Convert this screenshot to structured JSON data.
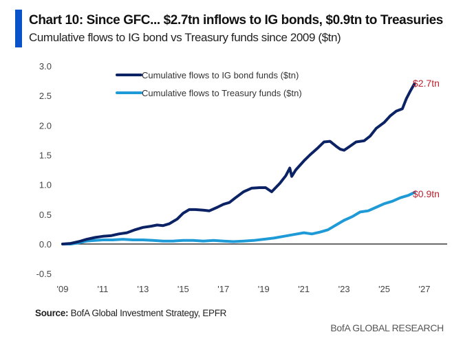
{
  "header": {
    "title": "Chart 10: Since GFC... $2.7tn inflows to IG bonds, $0.9tn to Treasuries",
    "subtitle": "Cumulative flows to IG bond vs Treasury funds since 2009 ($tn)",
    "accent_color": "#0a52c9"
  },
  "footer": {
    "source_label": "Source:",
    "source_text": " BofA Global Investment Strategy, EPFR",
    "brand": "BofA GLOBAL RESEARCH"
  },
  "chart_data": {
    "type": "line",
    "title": "Chart 10: Since GFC... $2.7tn inflows to IG bonds, $0.9tn to Treasuries",
    "subtitle": "Cumulative flows to IG bond vs Treasury funds since 2009 ($tn)",
    "xlabel": "",
    "ylabel": "",
    "xlim": [
      2009,
      2028.1
    ],
    "ylim": [
      -0.5,
      3.0
    ],
    "grid": false,
    "legend_position": "top-left",
    "x_ticks": [
      2009,
      2011,
      2013,
      2015,
      2017,
      2019,
      2021,
      2023,
      2025,
      2027
    ],
    "x_tick_labels": [
      "'09",
      "'11",
      "'13",
      "'15",
      "'17",
      "'19",
      "'21",
      "'23",
      "'25",
      "'27"
    ],
    "y_ticks": [
      -0.5,
      0.0,
      0.5,
      1.0,
      1.5,
      2.0,
      2.5,
      3.0
    ],
    "y_tick_labels": [
      "-0.5",
      "0.0",
      "0.5",
      "1.0",
      "1.5",
      "2.0",
      "2.5",
      "3.0"
    ],
    "series": [
      {
        "name": "Cumulative flows to IG bond funds ($tn)",
        "color": "#0b2265",
        "end_label": "$2.7tn",
        "x": [
          2009.0,
          2009.4,
          2009.8,
          2010.2,
          2010.6,
          2011.0,
          2011.4,
          2011.8,
          2012.2,
          2012.6,
          2013.0,
          2013.4,
          2013.7,
          2014.0,
          2014.3,
          2014.7,
          2015.0,
          2015.3,
          2015.6,
          2016.0,
          2016.3,
          2016.7,
          2017.0,
          2017.3,
          2017.6,
          2018.0,
          2018.4,
          2018.8,
          2019.1,
          2019.4,
          2019.8,
          2020.1,
          2020.3,
          2020.4,
          2020.6,
          2021.0,
          2021.3,
          2021.7,
          2022.0,
          2022.3,
          2022.6,
          2022.8,
          2023.0,
          2023.3,
          2023.6,
          2024.0,
          2024.3,
          2024.6,
          2025.0,
          2025.3,
          2025.6,
          2025.9,
          2026.1,
          2026.3,
          2026.5
        ],
        "values": [
          0.0,
          0.01,
          0.04,
          0.08,
          0.11,
          0.13,
          0.14,
          0.17,
          0.19,
          0.24,
          0.28,
          0.3,
          0.32,
          0.31,
          0.34,
          0.42,
          0.52,
          0.58,
          0.58,
          0.57,
          0.56,
          0.62,
          0.67,
          0.7,
          0.78,
          0.88,
          0.94,
          0.95,
          0.95,
          0.88,
          1.02,
          1.15,
          1.28,
          1.14,
          1.25,
          1.4,
          1.5,
          1.62,
          1.72,
          1.73,
          1.65,
          1.6,
          1.58,
          1.65,
          1.72,
          1.74,
          1.82,
          1.95,
          2.05,
          2.16,
          2.24,
          2.28,
          2.45,
          2.58,
          2.7
        ]
      },
      {
        "name": "Cumulative flows to Treasury funds ($tn)",
        "color": "#1e9ad6",
        "end_label": "$0.9tn",
        "x": [
          2009.0,
          2009.4,
          2009.8,
          2010.2,
          2010.6,
          2011.0,
          2011.5,
          2012.0,
          2012.5,
          2013.0,
          2013.5,
          2014.0,
          2014.5,
          2015.0,
          2015.5,
          2016.0,
          2016.5,
          2017.0,
          2017.5,
          2018.0,
          2018.5,
          2019.0,
          2019.5,
          2020.0,
          2020.5,
          2021.0,
          2021.4,
          2021.8,
          2022.2,
          2022.6,
          2023.0,
          2023.4,
          2023.8,
          2024.2,
          2024.6,
          2025.0,
          2025.4,
          2025.8,
          2026.2,
          2026.5
        ],
        "values": [
          0.0,
          0.0,
          0.02,
          0.05,
          0.06,
          0.07,
          0.07,
          0.08,
          0.07,
          0.07,
          0.06,
          0.05,
          0.05,
          0.06,
          0.06,
          0.05,
          0.06,
          0.05,
          0.04,
          0.05,
          0.06,
          0.08,
          0.1,
          0.13,
          0.16,
          0.19,
          0.17,
          0.2,
          0.24,
          0.32,
          0.4,
          0.46,
          0.54,
          0.56,
          0.62,
          0.68,
          0.72,
          0.78,
          0.82,
          0.87
        ]
      }
    ],
    "annotations": [
      "$2.7tn",
      "$0.9tn"
    ],
    "zero_line": true
  }
}
